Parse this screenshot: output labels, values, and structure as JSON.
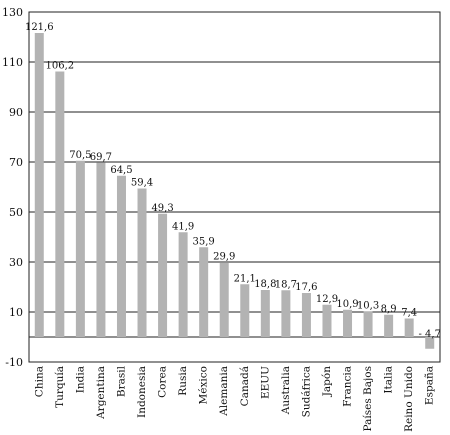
{
  "chart_data": {
    "type": "bar",
    "categories": [
      "China",
      "Turquía",
      "India",
      "Argentina",
      "Brasil",
      "Indonesia",
      "Corea",
      "Rusia",
      "México",
      "Alemania",
      "Canadá",
      "EEUU",
      "Australia",
      "Sudáfrica",
      "Japón",
      "Francia",
      "Países Bajos",
      "Italia",
      "Reino Unido",
      "España"
    ],
    "values": [
      121.6,
      106.2,
      70.5,
      69.7,
      64.5,
      59.4,
      49.3,
      41.9,
      35.9,
      29.9,
      21.1,
      18.8,
      18.7,
      17.6,
      12.9,
      10.9,
      10.3,
      8.9,
      7.4,
      -4.7
    ],
    "data_labels": [
      "121,6",
      "106,2",
      "70,5",
      "69,7",
      "64,5",
      "59,4",
      "49,3",
      "41,9",
      "35,9",
      "29,9",
      "21,1",
      "18,8",
      "18,7",
      "17,6",
      "12,9",
      "10,9",
      "10,3",
      "8,9",
      "7,4",
      "- 4,7"
    ],
    "title": "",
    "xlabel": "",
    "ylabel": "",
    "ylim": [
      -10,
      130
    ],
    "yticks": [
      -10,
      10,
      30,
      50,
      70,
      90,
      110,
      130
    ],
    "grid": true,
    "legend": "none",
    "bar_color": "#b3b3b3",
    "gridline_color": "#222222"
  }
}
